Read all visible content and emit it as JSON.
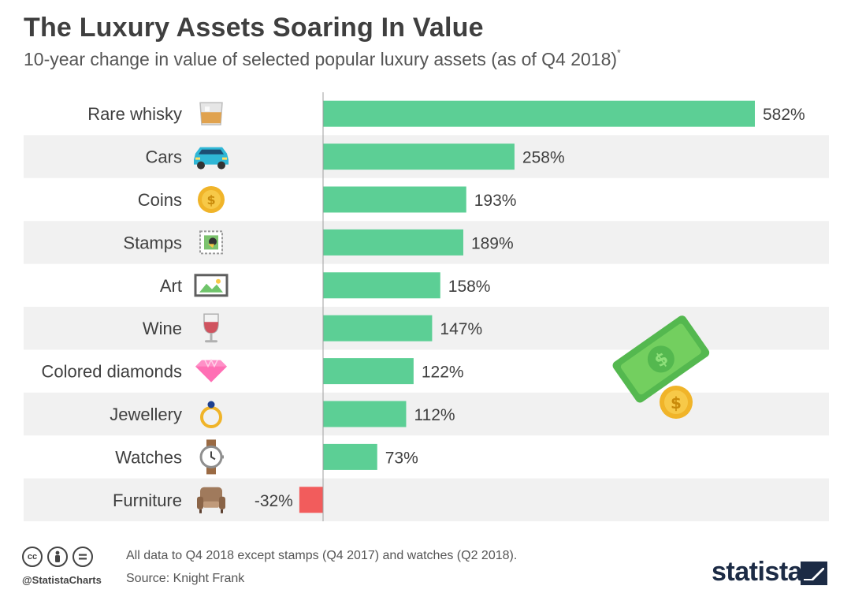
{
  "header": {
    "title": "The Luxury Assets Soaring In Value",
    "subtitle": "10-year change in value of selected popular luxury assets (as of Q4 2018)",
    "subtitle_mark": "*"
  },
  "chart_data": {
    "type": "bar",
    "orientation": "horizontal",
    "categories": [
      "Rare whisky",
      "Cars",
      "Coins",
      "Stamps",
      "Art",
      "Wine",
      "Colored diamonds",
      "Jewellery",
      "Watches",
      "Furniture"
    ],
    "values": [
      582,
      258,
      193,
      189,
      158,
      147,
      122,
      112,
      73,
      -32
    ],
    "value_labels": [
      "582%",
      "258%",
      "193%",
      "189%",
      "158%",
      "147%",
      "122%",
      "112%",
      "73%",
      "-32%"
    ],
    "unit": "%",
    "icons": [
      "whisky-glass-icon",
      "car-icon",
      "coin-icon",
      "stamp-icon",
      "picture-frame-icon",
      "wine-glass-icon",
      "diamond-icon",
      "ring-icon",
      "watch-icon",
      "armchair-icon"
    ],
    "colors": {
      "positive": "#5ccf95",
      "negative": "#f25c5c",
      "stripe": "#f1f1f1"
    },
    "grid": false,
    "legend": "none"
  },
  "footer": {
    "note": "All data to Q4 2018 except stamps (Q4 2017) and watches (Q2 2018).",
    "source": "Source: Knight Frank",
    "handle": "@StatistaCharts",
    "brand": "statista",
    "license_icons": [
      "creative-commons-icon",
      "attribution-icon",
      "no-derivatives-icon"
    ]
  }
}
